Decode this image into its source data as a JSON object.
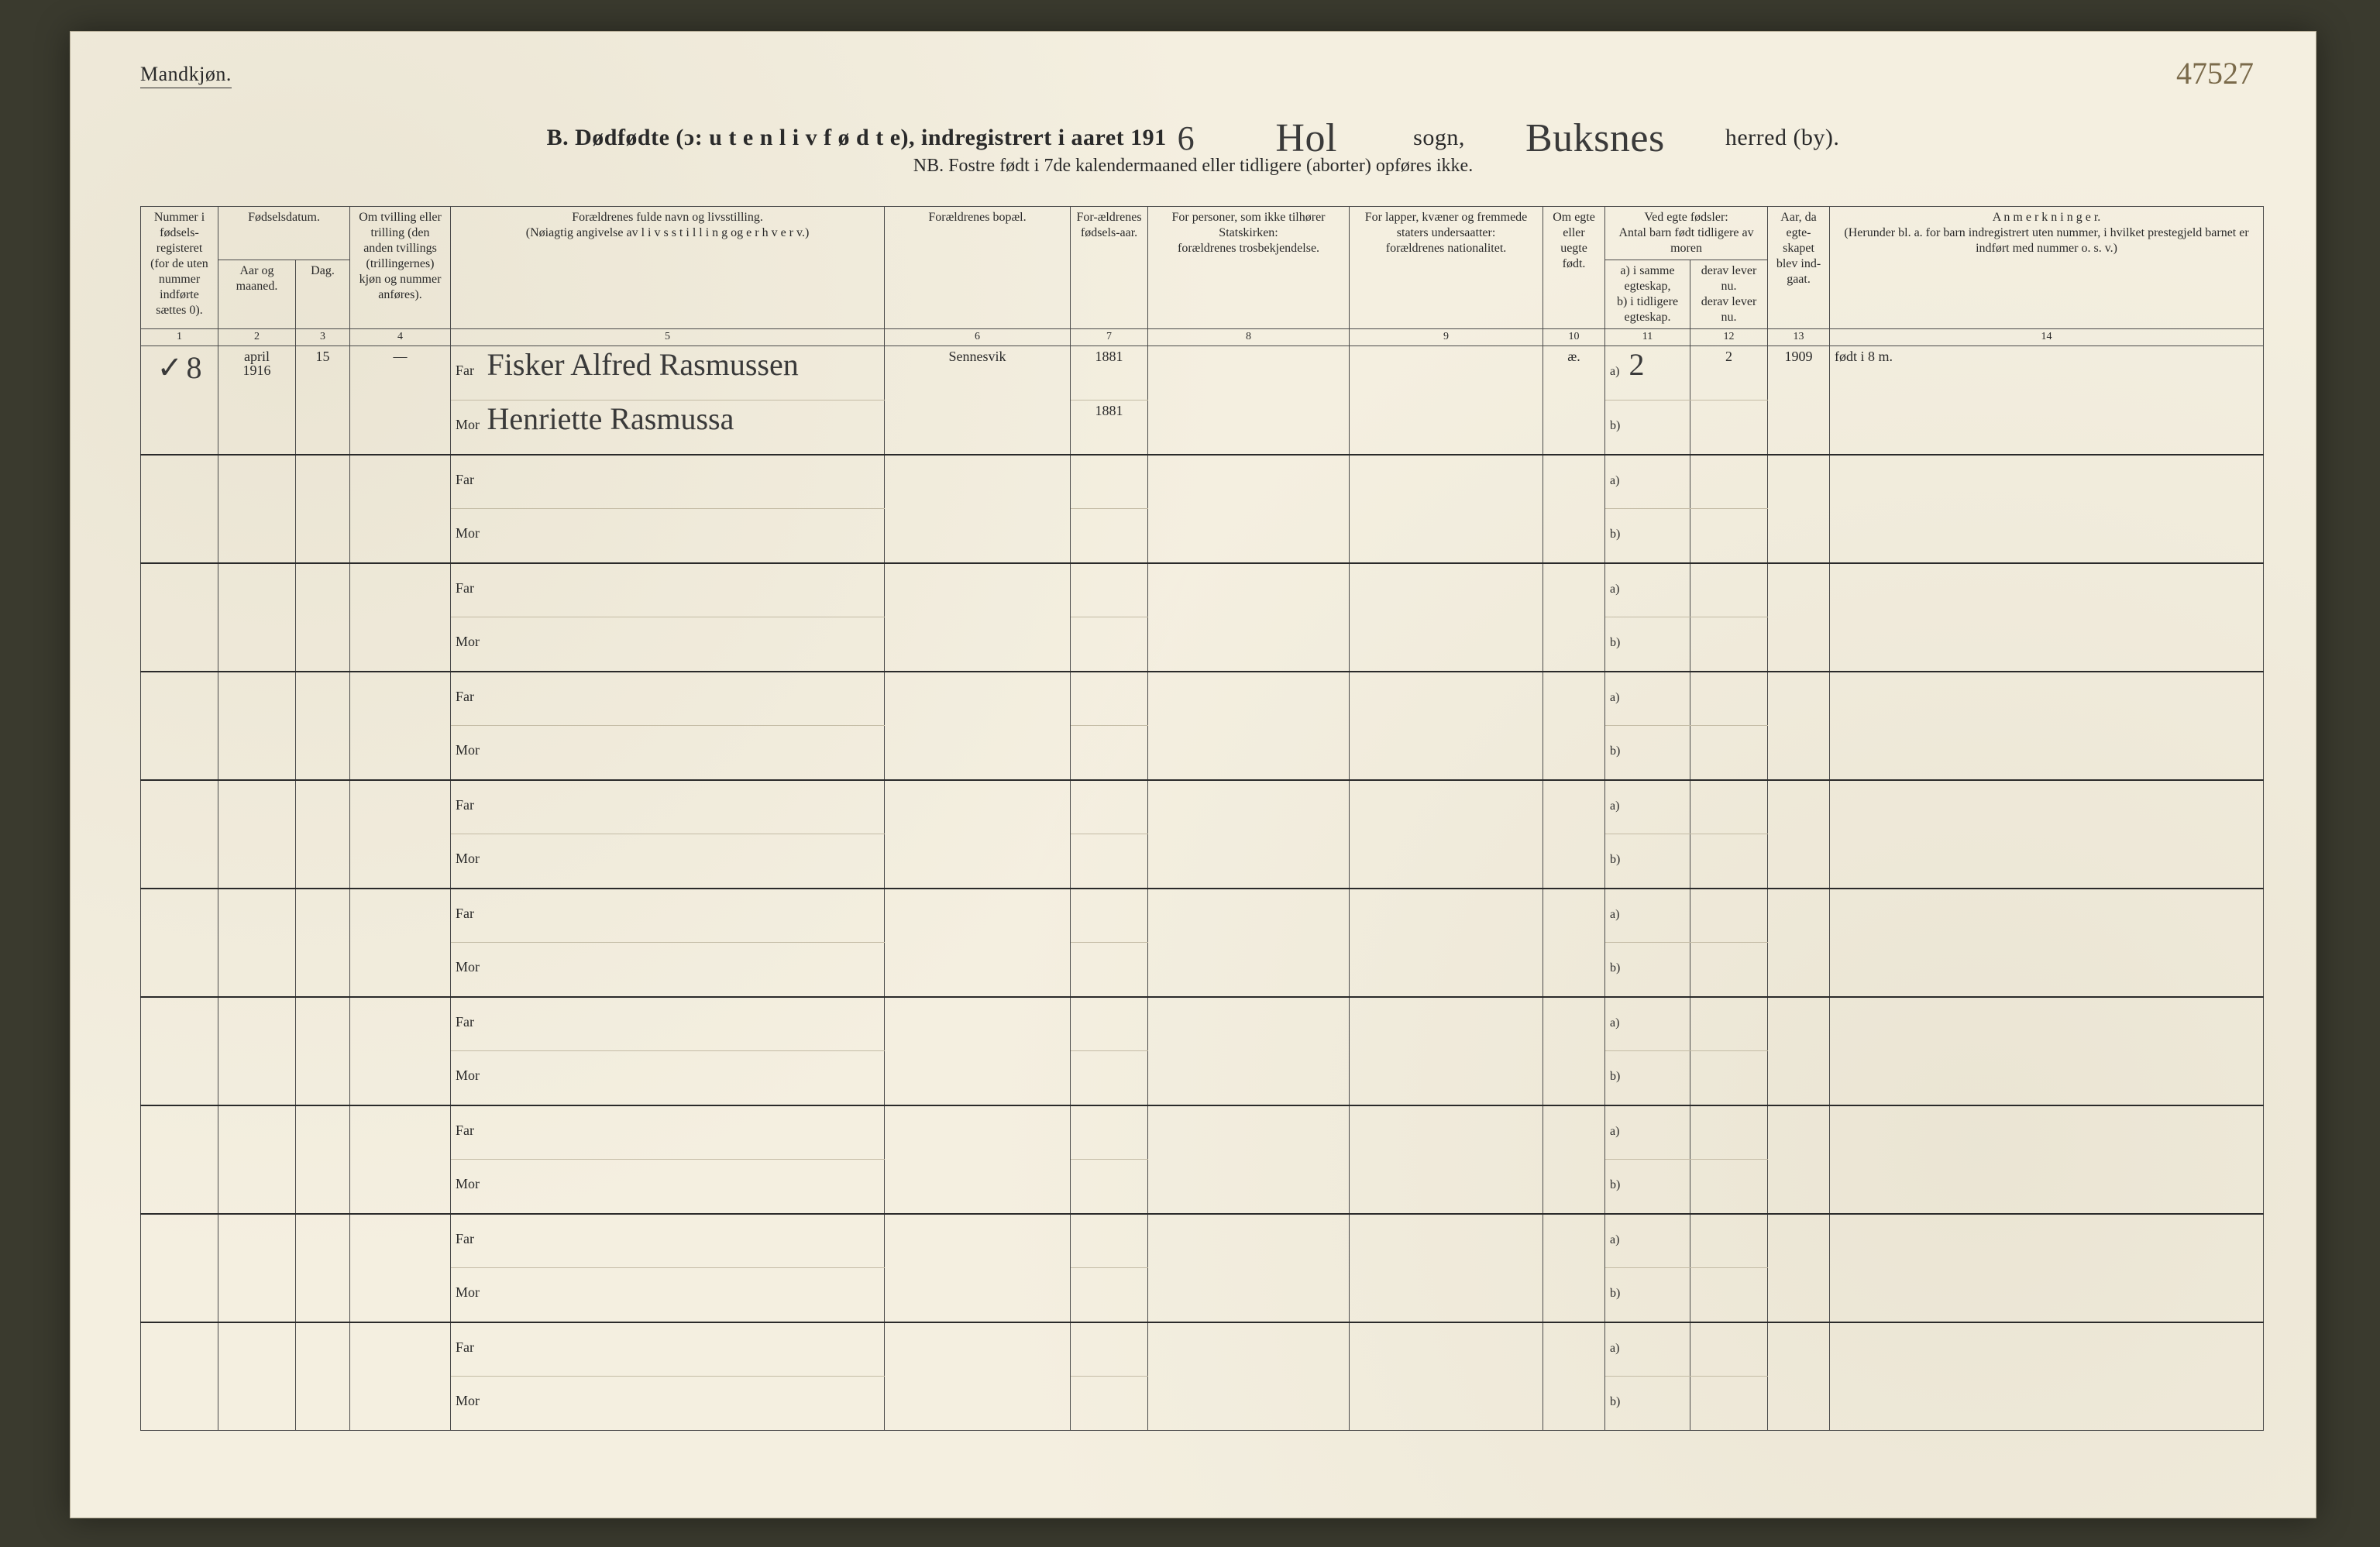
{
  "page": {
    "background_color": "#f4efe0",
    "ink_color": "#2a2a2a",
    "handwriting_color": "#3a3a3a",
    "faded_handwriting_color": "#7a6a4a",
    "rule_color": "#4a4a4a",
    "light_rule_color": "#c4bca6"
  },
  "header": {
    "gender_label": "Mandkjøn.",
    "corner_number": "47527",
    "title_prefix": "B.",
    "title_main": "Dødfødte (ɔ:  u t e n  l i v  f ø d t e),  indregistrert i aaret 191",
    "year_suffix_hw": "6",
    "parish_hw": "Hol",
    "sogn_label": "sogn,",
    "district_hw": "Buksnes",
    "herred_label": "herred (by).",
    "subtitle": "NB.  Fostre født i 7de kalendermaaned eller tidligere (aborter) opføres ikke."
  },
  "columns": {
    "c1": "Nummer i fødsels-registeret (for de uten nummer indførte sættes 0).",
    "c2_group": "Fødselsdatum.",
    "c2a": "Aar og maaned.",
    "c2b": "Dag.",
    "c4": "Om tvilling eller trilling (den anden tvillings (trillingernes) kjøn og nummer anføres).",
    "c5": "Forældrenes fulde navn og livsstilling.\n(Nøiagtig angivelse av  l i v s s t i l l i n g  og  e r h v e r v.)",
    "c6": "Forældrenes bopæl.",
    "c7": "For-ældrenes fødsels-aar.",
    "c8": "For personer, som ikke tilhører Statskirken:\nforældrenes trosbekjendelse.",
    "c9": "For lapper, kvæner og fremmede staters undersaatter:\nforældrenes nationalitet.",
    "c10": "Om egte eller uegte født.",
    "c11_group": "Ved egte fødsler:\nAntal barn født tidligere av moren",
    "c11a": "a) i samme egteskap,\nb) i tidligere egteskap.",
    "c12": "derav lever nu.\nderav lever nu.",
    "c13": "Aar, da egte-skapet blev ind-gaat.",
    "c14": "A n m e r k n i n g e r.\n(Herunder bl. a. for barn indregistrert uten nummer, i hvilket prestegjeld barnet er indført med nummer o. s. v.)",
    "nums": [
      "1",
      "2",
      "3",
      "4",
      "5",
      "6",
      "7",
      "8",
      "9",
      "10",
      "11",
      "12",
      "13",
      "14"
    ]
  },
  "labels": {
    "far": "Far",
    "mor": "Mor",
    "a": "a)",
    "b": "b)"
  },
  "entries": [
    {
      "tick": "✓",
      "number": "8",
      "month_year": "april\n1916",
      "day": "15",
      "twin": "—",
      "far_name": "Fisker Alfred Rasmussen",
      "mor_name": "Henriette Rasmussa",
      "residence": "Sennesvik",
      "far_year": "1881",
      "mor_year": "1881",
      "col8": "",
      "col9": "",
      "legit": "æ.",
      "c11a": "2",
      "c12a": "2",
      "c11b": "",
      "c12b": "",
      "marriage_year": "1909",
      "notes": "født i 8 m."
    }
  ],
  "empty_row_count": 9
}
